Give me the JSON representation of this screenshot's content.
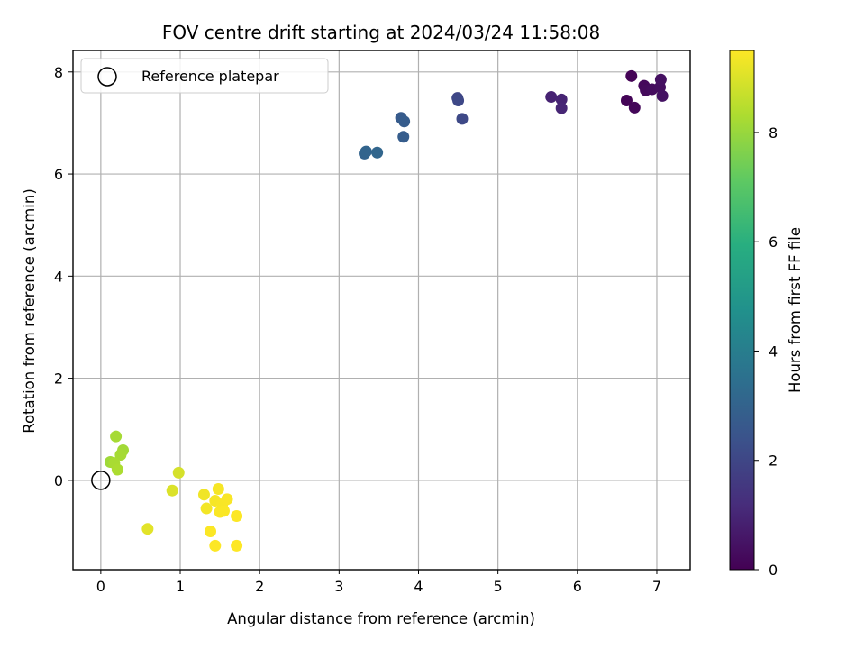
{
  "chart_data": {
    "type": "scatter",
    "title": "FOV centre drift starting at 2024/03/24 11:58:08",
    "xlabel": "Angular distance from reference (arcmin)",
    "ylabel": "Rotation from reference (arcmin)",
    "xlim": [
      -0.35,
      7.42
    ],
    "ylim": [
      -1.75,
      8.42
    ],
    "xticks": [
      0,
      1,
      2,
      3,
      4,
      5,
      6,
      7
    ],
    "yticks": [
      0,
      2,
      4,
      6,
      8
    ],
    "grid": true,
    "legend": {
      "placement": "top-left",
      "entries": [
        "Reference platepar"
      ]
    },
    "reference_point": {
      "x": 0,
      "y": 0,
      "label": "Reference platepar"
    },
    "colorbar": {
      "label": "Hours from first FF file",
      "range": [
        0,
        9.5
      ],
      "ticks": [
        0,
        2,
        4,
        6,
        8
      ],
      "colormap": "viridis"
    },
    "points": [
      {
        "x": 6.68,
        "y": 7.92,
        "c": 0.05
      },
      {
        "x": 6.62,
        "y": 7.44,
        "c": 0.1
      },
      {
        "x": 6.72,
        "y": 7.3,
        "c": 0.15
      },
      {
        "x": 6.84,
        "y": 7.73,
        "c": 0.2
      },
      {
        "x": 6.86,
        "y": 7.64,
        "c": 0.25
      },
      {
        "x": 6.94,
        "y": 7.66,
        "c": 0.3
      },
      {
        "x": 7.04,
        "y": 7.7,
        "c": 0.35
      },
      {
        "x": 7.05,
        "y": 7.85,
        "c": 0.4
      },
      {
        "x": 7.07,
        "y": 7.53,
        "c": 0.45
      },
      {
        "x": 5.67,
        "y": 7.51,
        "c": 0.9
      },
      {
        "x": 5.8,
        "y": 7.46,
        "c": 0.95
      },
      {
        "x": 5.8,
        "y": 7.29,
        "c": 1.0
      },
      {
        "x": 4.49,
        "y": 7.49,
        "c": 2.0
      },
      {
        "x": 4.5,
        "y": 7.44,
        "c": 2.05
      },
      {
        "x": 4.55,
        "y": 7.08,
        "c": 2.1
      },
      {
        "x": 3.78,
        "y": 7.1,
        "c": 2.7
      },
      {
        "x": 3.82,
        "y": 7.03,
        "c": 2.75
      },
      {
        "x": 3.81,
        "y": 6.73,
        "c": 2.8
      },
      {
        "x": 3.32,
        "y": 6.4,
        "c": 3.0
      },
      {
        "x": 3.34,
        "y": 6.44,
        "c": 3.05
      },
      {
        "x": 3.48,
        "y": 6.42,
        "c": 3.1
      },
      {
        "x": 0.19,
        "y": 0.86,
        "c": 8.2
      },
      {
        "x": 0.12,
        "y": 0.36,
        "c": 8.1
      },
      {
        "x": 0.28,
        "y": 0.59,
        "c": 8.15
      },
      {
        "x": 0.25,
        "y": 0.5,
        "c": 8.2
      },
      {
        "x": 0.17,
        "y": 0.34,
        "c": 8.25
      },
      {
        "x": 0.21,
        "y": 0.21,
        "c": 8.3
      },
      {
        "x": 0.98,
        "y": 0.15,
        "c": 8.9
      },
      {
        "x": 0.9,
        "y": -0.2,
        "c": 9.0
      },
      {
        "x": 0.59,
        "y": -0.95,
        "c": 9.1
      },
      {
        "x": 1.3,
        "y": -0.28,
        "c": 9.3
      },
      {
        "x": 1.33,
        "y": -0.55,
        "c": 9.35
      },
      {
        "x": 1.48,
        "y": -0.17,
        "c": 9.4
      },
      {
        "x": 1.44,
        "y": -0.4,
        "c": 9.4
      },
      {
        "x": 1.53,
        "y": -0.47,
        "c": 9.42
      },
      {
        "x": 1.59,
        "y": -0.37,
        "c": 9.44
      },
      {
        "x": 1.5,
        "y": -0.62,
        "c": 9.45
      },
      {
        "x": 1.55,
        "y": -0.6,
        "c": 9.46
      },
      {
        "x": 1.38,
        "y": -1.0,
        "c": 9.47
      },
      {
        "x": 1.71,
        "y": -0.7,
        "c": 9.48
      },
      {
        "x": 1.44,
        "y": -1.28,
        "c": 9.49
      },
      {
        "x": 1.71,
        "y": -1.28,
        "c": 9.5
      }
    ]
  }
}
